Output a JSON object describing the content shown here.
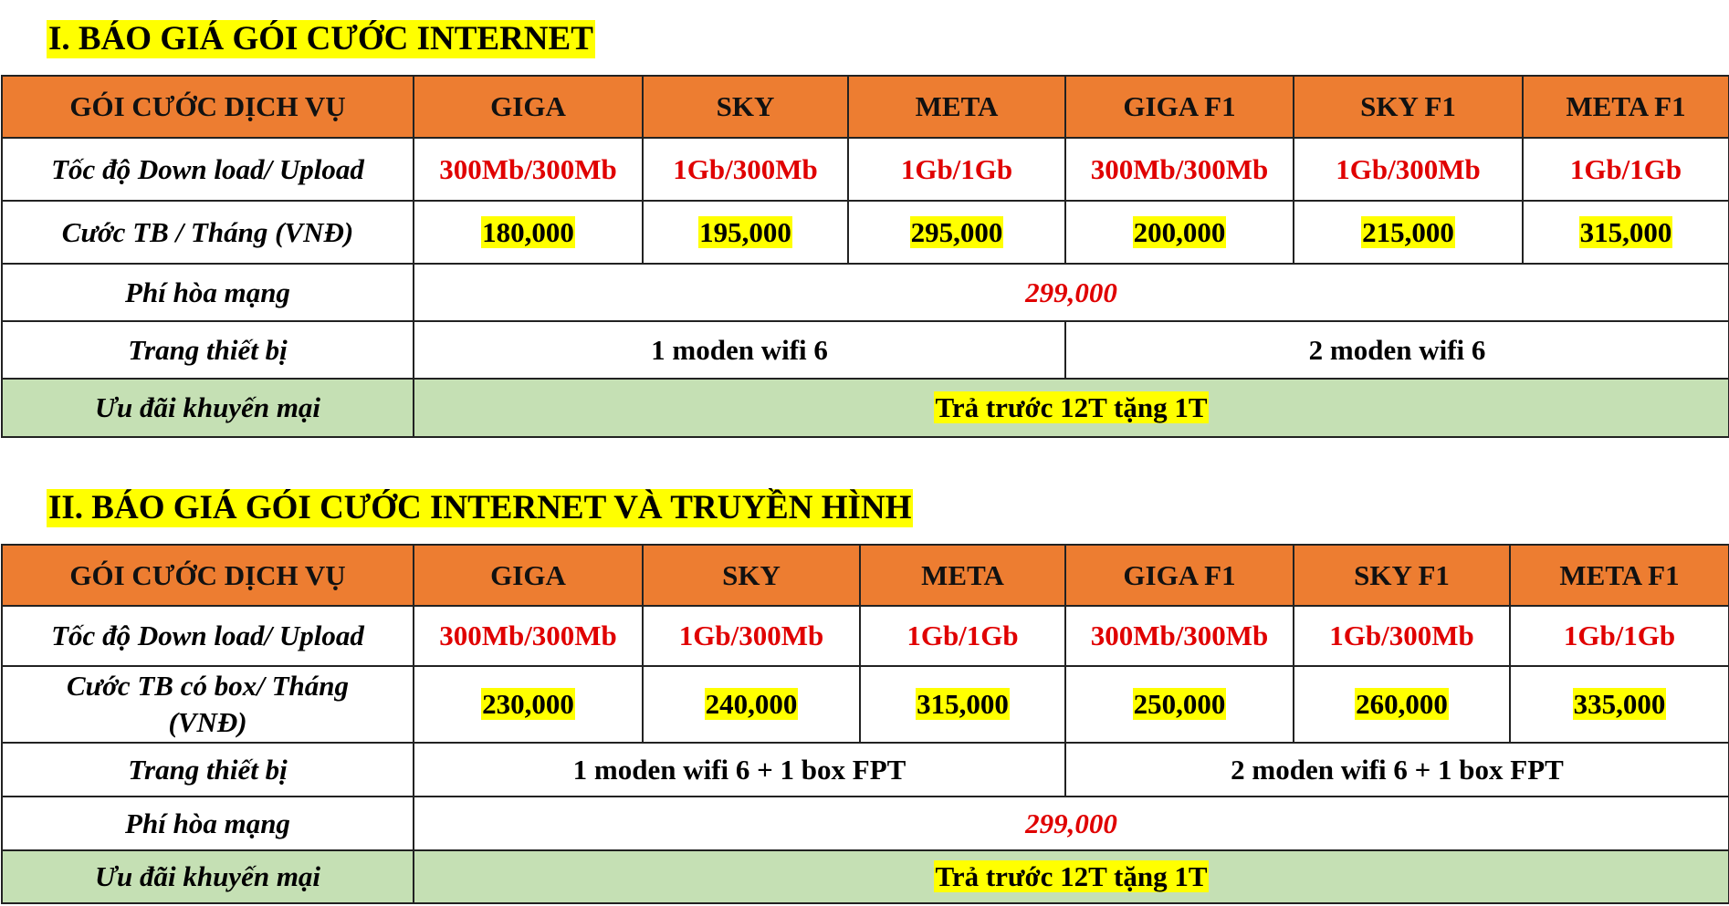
{
  "colors": {
    "header_bg": "#ed7d31",
    "highlight": "#ffff00",
    "promo_bg": "#c5e0b4",
    "price_text": "#e00000"
  },
  "section1": {
    "title": "I. BÁO GIÁ GÓI CƯỚC INTERNET",
    "header": [
      "GÓI CƯỚC DỊCH VỤ",
      "GIGA",
      "SKY",
      "META",
      "GIGA F1",
      "SKY F1",
      "META F1"
    ],
    "speed": {
      "label": "Tốc độ Down load/ Upload",
      "values": [
        "300Mb/300Mb",
        "1Gb/300Mb",
        "1Gb/1Gb",
        "300Mb/300Mb",
        "1Gb/300Mb",
        "1Gb/1Gb"
      ]
    },
    "price": {
      "label": "Cước TB / Tháng (VNĐ)",
      "values": [
        "180,000",
        "195,000",
        "295,000",
        "200,000",
        "215,000",
        "315,000"
      ]
    },
    "fee": {
      "label": "Phí hòa mạng",
      "value": "299,000"
    },
    "equipment": {
      "label": "Trang thiết bị",
      "values": [
        "1 moden wifi 6",
        "2 moden wifi 6"
      ]
    },
    "promo": {
      "label": "Ưu đãi khuyến mại",
      "value": "Trả trước 12T tặng 1T"
    }
  },
  "section2": {
    "title": "II. BÁO GIÁ GÓI CƯỚC INTERNET VÀ TRUYỀN HÌNH",
    "header": [
      "GÓI CƯỚC DỊCH VỤ",
      "GIGA",
      "SKY",
      "META",
      "GIGA F1",
      "SKY F1",
      "META F1"
    ],
    "speed": {
      "label": "Tốc độ Down load/ Upload",
      "values": [
        "300Mb/300Mb",
        "1Gb/300Mb",
        "1Gb/1Gb",
        "300Mb/300Mb",
        "1Gb/300Mb",
        "1Gb/1Gb"
      ]
    },
    "price": {
      "label": "Cước TB có box/ Tháng (VNĐ)",
      "values": [
        "230,000",
        "240,000",
        "315,000",
        "250,000",
        "260,000",
        "335,000"
      ]
    },
    "equipment": {
      "label": "Trang thiết bị",
      "values": [
        "1 moden wifi 6 + 1 box FPT",
        "2 moden wifi 6 + 1 box FPT"
      ]
    },
    "fee": {
      "label": "Phí hòa mạng",
      "value": "299,000"
    },
    "promo": {
      "label": "Ưu đãi khuyến mại",
      "value": "Trả trước 12T tặng 1T"
    }
  }
}
